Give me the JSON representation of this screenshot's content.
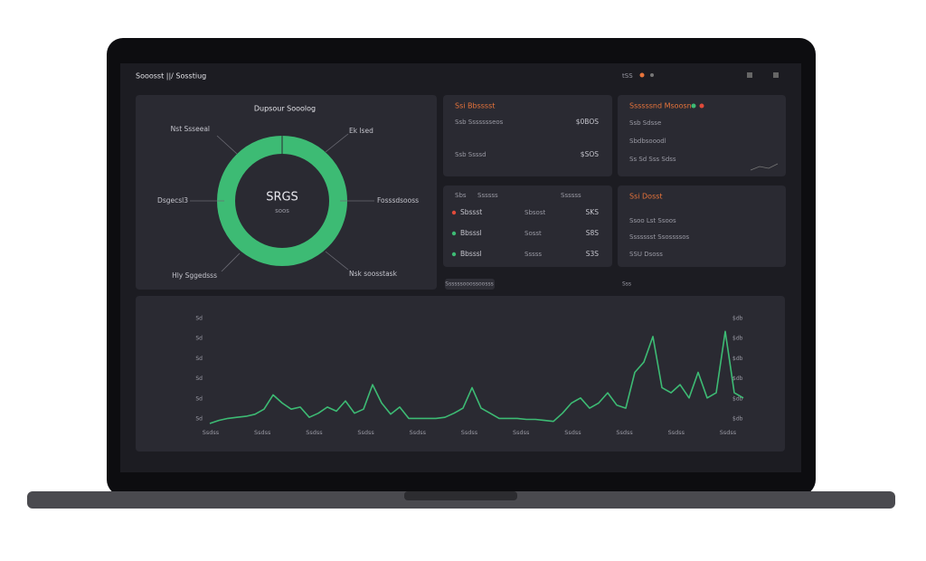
{
  "header": {
    "title": "Sooosst ||/ Sosstiug",
    "right": "tSS"
  },
  "donut": {
    "title": "Dupsour Sooolog",
    "center": "SRGS",
    "center_sub": "soos",
    "labels": [
      "Nst Ssseeal",
      "Ek lsed",
      "Dsgecsl3",
      "Fosssdsooss",
      "Hly Sggedsss",
      "Nsk soosstask"
    ]
  },
  "card_1": {
    "title": "Ssi Bbsssst",
    "rows": [
      [
        "Ssb Ssssssseos",
        "$0BOS"
      ],
      [
        "Ssb Ssssd",
        "$SOS"
      ]
    ]
  },
  "card_2": {
    "title": "Ssssssnd Msoosn",
    "rows": [
      "Ssb Sdsse",
      "Sbdbsooodl",
      "Ss Sd  Sss  Sdss"
    ]
  },
  "card_3": {
    "header": [
      "Sbs",
      "Ssssss",
      "Ssssss"
    ],
    "rows": [
      [
        "Sbssst",
        "Sbsost",
        "SKS"
      ],
      [
        "Bbsssl",
        "Sosst",
        "S8S"
      ],
      [
        "Bbsssl",
        "Sssss",
        "S3S"
      ]
    ]
  },
  "card_4": {
    "title": "Ssi Dosst",
    "rows": [
      "Ssoo Lst Ssoos",
      "Ssssssst Ssossssos",
      "SSU Dsoss"
    ]
  },
  "toolbar": {
    "chip": "Ssssssooossoosss",
    "text": "Sss"
  },
  "chart_data": {
    "type": "line",
    "color": "#3dbb74",
    "ylim": [
      0,
      100
    ],
    "yticks_left": [
      "Sd",
      "Sd",
      "Sd",
      "Sd",
      "Sd",
      "Sd"
    ],
    "yticks_right": [
      "$db",
      "$db",
      "$db",
      "$db",
      "$db",
      "$db"
    ],
    "xticks": [
      "Ssdss",
      "Ssdss",
      "Ssdss",
      "Ssdss",
      "Ssdss",
      "Ssdss",
      "Ssdss",
      "Ssdss",
      "Ssdss",
      "Ssdss",
      "Ssdss"
    ],
    "values": [
      0,
      3,
      5,
      6,
      7,
      9,
      14,
      28,
      20,
      14,
      16,
      6,
      10,
      16,
      12,
      22,
      10,
      14,
      38,
      20,
      9,
      16,
      5,
      5,
      5,
      5,
      6,
      10,
      15,
      35,
      15,
      10,
      5,
      5,
      5,
      4,
      4,
      3,
      2,
      10,
      20,
      25,
      15,
      20,
      30,
      18,
      15,
      50,
      60,
      85,
      35,
      30,
      38,
      25,
      50,
      25,
      30,
      90,
      30,
      25
    ]
  }
}
